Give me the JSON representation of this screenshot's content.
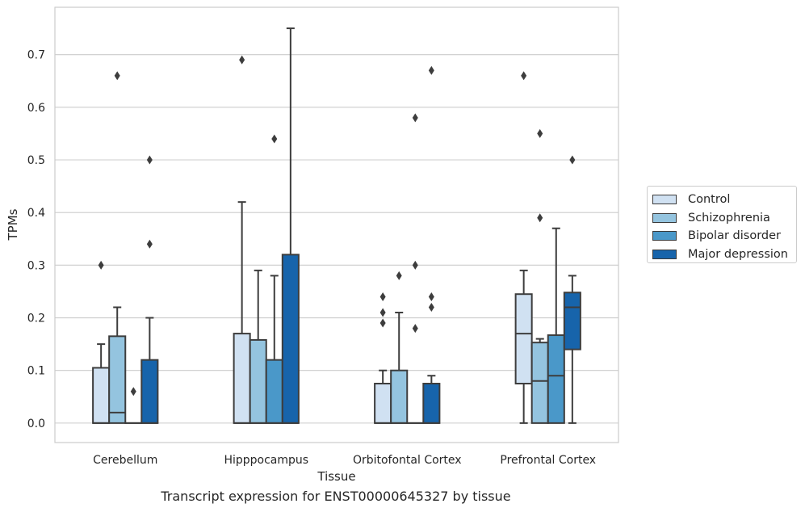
{
  "caption": "Transcript expression for ENST00000645327 by tissue",
  "chart_data": {
    "type": "boxplot",
    "title": "",
    "xlabel": "Tissue",
    "ylabel": "TPMs",
    "ylim": [
      -0.037,
      0.79
    ],
    "yticks": [
      "0.0",
      "0.1",
      "0.2",
      "0.3",
      "0.4",
      "0.5",
      "0.6",
      "0.7"
    ],
    "grid": true,
    "legend_position": "right",
    "categories": [
      "Cerebellum",
      "Hipppocampus",
      "Orbitofontal Cortex",
      "Prefrontal Cortex"
    ],
    "series": [
      {
        "name": "Control",
        "color": "#d0e1f2",
        "boxes": [
          {
            "q1": 0,
            "median": 0,
            "q3": 0.105,
            "whisker_low": 0,
            "whisker_high": 0.15,
            "outliers": [
              0.3
            ]
          },
          {
            "q1": 0,
            "median": 0,
            "q3": 0.17,
            "whisker_low": 0,
            "whisker_high": 0.42,
            "outliers": [
              0.69
            ]
          },
          {
            "q1": 0,
            "median": 0,
            "q3": 0.075,
            "whisker_low": 0,
            "whisker_high": 0.1,
            "outliers": [
              0.19,
              0.21,
              0.24
            ]
          },
          {
            "q1": 0.075,
            "median": 0.17,
            "q3": 0.245,
            "whisker_low": 0,
            "whisker_high": 0.29,
            "outliers": [
              0.66
            ]
          }
        ]
      },
      {
        "name": "Schizophrenia",
        "color": "#94c4df",
        "boxes": [
          {
            "q1": 0,
            "median": 0.02,
            "q3": 0.165,
            "whisker_low": 0,
            "whisker_high": 0.22,
            "outliers": [
              0.66
            ]
          },
          {
            "q1": 0,
            "median": 0,
            "q3": 0.158,
            "whisker_low": 0,
            "whisker_high": 0.29,
            "outliers": []
          },
          {
            "q1": 0,
            "median": 0,
            "q3": 0.1,
            "whisker_low": 0,
            "whisker_high": 0.21,
            "outliers": [
              0.28
            ]
          },
          {
            "q1": 0,
            "median": 0.08,
            "q3": 0.153,
            "whisker_low": 0,
            "whisker_high": 0.16,
            "outliers": [
              0.39,
              0.55
            ]
          }
        ]
      },
      {
        "name": "Bipolar disorder",
        "color": "#4a98c9",
        "boxes": [
          {
            "q1": 0,
            "median": 0,
            "q3": 0,
            "whisker_low": 0,
            "whisker_high": 0,
            "outliers": [
              0.06
            ]
          },
          {
            "q1": 0,
            "median": 0,
            "q3": 0.12,
            "whisker_low": 0,
            "whisker_high": 0.28,
            "outliers": [
              0.54
            ]
          },
          {
            "q1": 0,
            "median": 0,
            "q3": 0,
            "whisker_low": 0,
            "whisker_high": 0,
            "outliers": [
              0.18,
              0.3,
              0.58
            ]
          },
          {
            "q1": 0,
            "median": 0.09,
            "q3": 0.167,
            "whisker_low": 0,
            "whisker_high": 0.37,
            "outliers": []
          }
        ]
      },
      {
        "name": "Major depression",
        "color": "#1764ab",
        "boxes": [
          {
            "q1": 0,
            "median": 0,
            "q3": 0.12,
            "whisker_low": 0,
            "whisker_high": 0.2,
            "outliers": [
              0.34,
              0.5
            ]
          },
          {
            "q1": 0,
            "median": 0,
            "q3": 0.32,
            "whisker_low": 0,
            "whisker_high": 0.75,
            "outliers": []
          },
          {
            "q1": 0,
            "median": 0,
            "q3": 0.075,
            "whisker_low": 0,
            "whisker_high": 0.09,
            "outliers": [
              0.22,
              0.24,
              0.67
            ]
          },
          {
            "q1": 0.14,
            "median": 0.22,
            "q3": 0.248,
            "whisker_low": 0,
            "whisker_high": 0.28,
            "outliers": [
              0.5
            ]
          }
        ]
      }
    ]
  }
}
